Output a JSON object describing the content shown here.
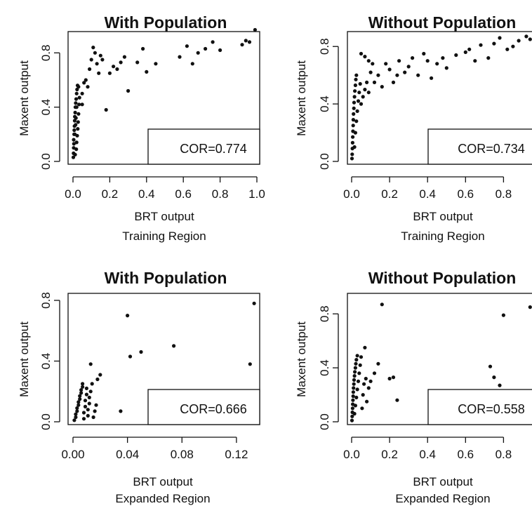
{
  "chart_data": [
    {
      "type": "scatter",
      "title": "With Population",
      "xlabel": "BRT output",
      "region": "Training Region",
      "ylabel": "Maxent output",
      "xlim": [
        0,
        1.0
      ],
      "ylim": [
        0,
        0.9
      ],
      "xticks": [
        0,
        0.2,
        0.4,
        0.6,
        0.8,
        1.0
      ],
      "xtick_labels": [
        "0.0",
        "0.2",
        "0.4",
        "0.6",
        "0.8",
        "1.0"
      ],
      "yticks": [
        0,
        0.4,
        0.8
      ],
      "ytick_labels": [
        "0.0",
        "0.4",
        "0.8"
      ],
      "annotation": "COR=0.774",
      "points": [
        [
          0.002,
          0.03
        ],
        [
          0.003,
          0.06
        ],
        [
          0.004,
          0.1
        ],
        [
          0.005,
          0.13
        ],
        [
          0.004,
          0.16
        ],
        [
          0.006,
          0.2
        ],
        [
          0.007,
          0.23
        ],
        [
          0.008,
          0.26
        ],
        [
          0.009,
          0.3
        ],
        [
          0.01,
          0.33
        ],
        [
          0.012,
          0.36
        ],
        [
          0.013,
          0.4
        ],
        [
          0.015,
          0.43
        ],
        [
          0.017,
          0.46
        ],
        [
          0.02,
          0.5
        ],
        [
          0.022,
          0.53
        ],
        [
          0.025,
          0.56
        ],
        [
          0.012,
          0.05
        ],
        [
          0.018,
          0.09
        ],
        [
          0.02,
          0.14
        ],
        [
          0.023,
          0.19
        ],
        [
          0.026,
          0.24
        ],
        [
          0.028,
          0.29
        ],
        [
          0.03,
          0.35
        ],
        [
          0.033,
          0.42
        ],
        [
          0.035,
          0.47
        ],
        [
          0.01,
          0.2
        ],
        [
          0.014,
          0.27
        ],
        [
          0.016,
          0.32
        ],
        [
          0.02,
          0.4
        ],
        [
          0.03,
          0.55
        ],
        [
          0.05,
          0.42
        ],
        [
          0.05,
          0.5
        ],
        [
          0.06,
          0.58
        ],
        [
          0.07,
          0.6
        ],
        [
          0.08,
          0.55
        ],
        [
          0.09,
          0.68
        ],
        [
          0.1,
          0.75
        ],
        [
          0.11,
          0.84
        ],
        [
          0.12,
          0.8
        ],
        [
          0.13,
          0.72
        ],
        [
          0.14,
          0.65
        ],
        [
          0.15,
          0.78
        ],
        [
          0.16,
          0.75
        ],
        [
          0.18,
          0.38
        ],
        [
          0.2,
          0.65
        ],
        [
          0.22,
          0.7
        ],
        [
          0.24,
          0.68
        ],
        [
          0.26,
          0.73
        ],
        [
          0.28,
          0.77
        ],
        [
          0.3,
          0.52
        ],
        [
          0.35,
          0.73
        ],
        [
          0.38,
          0.83
        ],
        [
          0.4,
          0.66
        ],
        [
          0.45,
          0.72
        ],
        [
          0.58,
          0.77
        ],
        [
          0.62,
          0.85
        ],
        [
          0.65,
          0.72
        ],
        [
          0.68,
          0.8
        ],
        [
          0.72,
          0.83
        ],
        [
          0.76,
          0.88
        ],
        [
          0.8,
          0.82
        ],
        [
          0.92,
          0.86
        ],
        [
          0.94,
          0.89
        ],
        [
          0.96,
          0.88
        ],
        [
          0.99,
          0.97
        ]
      ]
    },
    {
      "type": "scatter",
      "title": "Without Population",
      "xlabel": "BRT output",
      "region": "Training Region",
      "ylabel": "Maxent output",
      "xlim": [
        0,
        0.95
      ],
      "ylim": [
        0,
        0.85
      ],
      "xticks": [
        0,
        0.2,
        0.4,
        0.6,
        0.8
      ],
      "xtick_labels": [
        "0.0",
        "0.2",
        "0.4",
        "0.6",
        "0.8"
      ],
      "yticks": [
        0,
        0.4,
        0.8
      ],
      "ytick_labels": [
        "0.0",
        "0.4",
        "0.8"
      ],
      "annotation": "COR=0.734",
      "points": [
        [
          0.002,
          0.02
        ],
        [
          0.003,
          0.05
        ],
        [
          0.004,
          0.09
        ],
        [
          0.005,
          0.13
        ],
        [
          0.006,
          0.17
        ],
        [
          0.007,
          0.21
        ],
        [
          0.008,
          0.25
        ],
        [
          0.009,
          0.29
        ],
        [
          0.01,
          0.33
        ],
        [
          0.012,
          0.37
        ],
        [
          0.013,
          0.41
        ],
        [
          0.015,
          0.45
        ],
        [
          0.017,
          0.49
        ],
        [
          0.02,
          0.53
        ],
        [
          0.022,
          0.57
        ],
        [
          0.025,
          0.6
        ],
        [
          0.015,
          0.1
        ],
        [
          0.02,
          0.2
        ],
        [
          0.025,
          0.28
        ],
        [
          0.03,
          0.35
        ],
        [
          0.035,
          0.42
        ],
        [
          0.04,
          0.48
        ],
        [
          0.045,
          0.54
        ],
        [
          0.05,
          0.4
        ],
        [
          0.06,
          0.45
        ],
        [
          0.07,
          0.5
        ],
        [
          0.08,
          0.55
        ],
        [
          0.09,
          0.48
        ],
        [
          0.1,
          0.62
        ],
        [
          0.12,
          0.55
        ],
        [
          0.14,
          0.6
        ],
        [
          0.16,
          0.52
        ],
        [
          0.18,
          0.68
        ],
        [
          0.2,
          0.64
        ],
        [
          0.22,
          0.55
        ],
        [
          0.24,
          0.6
        ],
        [
          0.25,
          0.7
        ],
        [
          0.28,
          0.62
        ],
        [
          0.3,
          0.66
        ],
        [
          0.32,
          0.72
        ],
        [
          0.35,
          0.6
        ],
        [
          0.38,
          0.75
        ],
        [
          0.4,
          0.7
        ],
        [
          0.42,
          0.58
        ],
        [
          0.45,
          0.68
        ],
        [
          0.48,
          0.72
        ],
        [
          0.5,
          0.65
        ],
        [
          0.55,
          0.74
        ],
        [
          0.6,
          0.76
        ],
        [
          0.62,
          0.78
        ],
        [
          0.65,
          0.7
        ],
        [
          0.68,
          0.81
        ],
        [
          0.72,
          0.72
        ],
        [
          0.75,
          0.82
        ],
        [
          0.78,
          0.86
        ],
        [
          0.82,
          0.78
        ],
        [
          0.85,
          0.8
        ],
        [
          0.88,
          0.84
        ],
        [
          0.92,
          0.87
        ],
        [
          0.94,
          0.85
        ],
        [
          0.05,
          0.75
        ],
        [
          0.07,
          0.73
        ],
        [
          0.09,
          0.7
        ],
        [
          0.11,
          0.68
        ]
      ]
    },
    {
      "type": "scatter",
      "title": "With Population",
      "xlabel": "BRT output",
      "region": "Expanded Region",
      "ylabel": "Maxent output",
      "xlim": [
        0,
        0.135
      ],
      "ylim": [
        0,
        0.8
      ],
      "xticks": [
        0,
        0.04,
        0.08,
        0.12
      ],
      "xtick_labels": [
        "0.00",
        "0.04",
        "0.08",
        "0.12"
      ],
      "yticks": [
        0,
        0.4,
        0.8
      ],
      "ytick_labels": [
        "0.0",
        "0.4",
        "0.8"
      ],
      "annotation": "COR=0.666",
      "points": [
        [
          0.001,
          0.01
        ],
        [
          0.002,
          0.03
        ],
        [
          0.002,
          0.05
        ],
        [
          0.003,
          0.07
        ],
        [
          0.003,
          0.09
        ],
        [
          0.004,
          0.11
        ],
        [
          0.004,
          0.13
        ],
        [
          0.005,
          0.15
        ],
        [
          0.005,
          0.17
        ],
        [
          0.006,
          0.19
        ],
        [
          0.006,
          0.21
        ],
        [
          0.007,
          0.23
        ],
        [
          0.007,
          0.25
        ],
        [
          0.008,
          0.02
        ],
        [
          0.008,
          0.06
        ],
        [
          0.009,
          0.1
        ],
        [
          0.009,
          0.14
        ],
        [
          0.01,
          0.18
        ],
        [
          0.01,
          0.22
        ],
        [
          0.011,
          0.04
        ],
        [
          0.011,
          0.08
        ],
        [
          0.012,
          0.12
        ],
        [
          0.012,
          0.16
        ],
        [
          0.013,
          0.2
        ],
        [
          0.013,
          0.38
        ],
        [
          0.014,
          0.25
        ],
        [
          0.015,
          0.03
        ],
        [
          0.016,
          0.07
        ],
        [
          0.017,
          0.11
        ],
        [
          0.018,
          0.28
        ],
        [
          0.02,
          0.31
        ],
        [
          0.035,
          0.07
        ],
        [
          0.04,
          0.7
        ],
        [
          0.042,
          0.43
        ],
        [
          0.05,
          0.46
        ],
        [
          0.074,
          0.5
        ],
        [
          0.13,
          0.38
        ],
        [
          0.133,
          0.78
        ]
      ]
    },
    {
      "type": "scatter",
      "title": "Without Population",
      "xlabel": "BRT output",
      "region": "Expanded Region",
      "ylabel": "Maxent output",
      "xlim": [
        0,
        0.95
      ],
      "ylim": [
        0,
        0.9
      ],
      "xticks": [
        0,
        0.2,
        0.4,
        0.6,
        0.8
      ],
      "xtick_labels": [
        "0.0",
        "0.2",
        "0.4",
        "0.6",
        "0.8"
      ],
      "yticks": [
        0,
        0.4,
        0.8
      ],
      "ytick_labels": [
        "0.0",
        "0.4",
        "0.8"
      ],
      "annotation": "COR=0.558",
      "points": [
        [
          0.002,
          0.01
        ],
        [
          0.003,
          0.04
        ],
        [
          0.004,
          0.07
        ],
        [
          0.005,
          0.1
        ],
        [
          0.006,
          0.13
        ],
        [
          0.007,
          0.16
        ],
        [
          0.008,
          0.19
        ],
        [
          0.009,
          0.22
        ],
        [
          0.01,
          0.25
        ],
        [
          0.012,
          0.28
        ],
        [
          0.013,
          0.31
        ],
        [
          0.015,
          0.34
        ],
        [
          0.017,
          0.37
        ],
        [
          0.02,
          0.4
        ],
        [
          0.022,
          0.43
        ],
        [
          0.025,
          0.46
        ],
        [
          0.03,
          0.49
        ],
        [
          0.015,
          0.06
        ],
        [
          0.02,
          0.12
        ],
        [
          0.025,
          0.18
        ],
        [
          0.03,
          0.24
        ],
        [
          0.035,
          0.3
        ],
        [
          0.04,
          0.36
        ],
        [
          0.045,
          0.42
        ],
        [
          0.05,
          0.48
        ],
        [
          0.055,
          0.1
        ],
        [
          0.06,
          0.2
        ],
        [
          0.065,
          0.28
        ],
        [
          0.07,
          0.55
        ],
        [
          0.075,
          0.32
        ],
        [
          0.08,
          0.15
        ],
        [
          0.09,
          0.25
        ],
        [
          0.1,
          0.3
        ],
        [
          0.12,
          0.36
        ],
        [
          0.14,
          0.43
        ],
        [
          0.16,
          0.87
        ],
        [
          0.2,
          0.32
        ],
        [
          0.22,
          0.33
        ],
        [
          0.24,
          0.16
        ],
        [
          0.73,
          0.41
        ],
        [
          0.75,
          0.33
        ],
        [
          0.78,
          0.27
        ],
        [
          0.8,
          0.79
        ],
        [
          0.94,
          0.85
        ]
      ]
    }
  ]
}
